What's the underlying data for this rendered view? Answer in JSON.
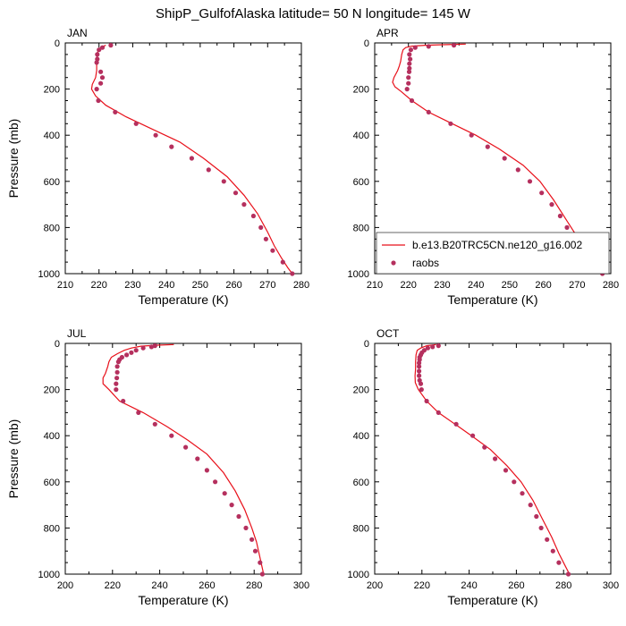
{
  "title": "ShipP_GulfofAlaska  latitude= 50 N longitude= 145 W",
  "legend": {
    "model_label": "b.e13.B20TRC5CN.ne120_g16.002",
    "obs_label": "raobs"
  },
  "colors": {
    "model": "#e8101a",
    "obs": "#b5305e"
  },
  "chart_data": [
    {
      "type": "line",
      "month": "JAN",
      "xlabel": "Temperature (K)",
      "ylabel": "Pressure (mb)",
      "xlim": [
        210,
        280
      ],
      "xticks": [
        210,
        220,
        230,
        240,
        250,
        260,
        270,
        280
      ],
      "ylim": [
        1000,
        0
      ],
      "yticks": [
        0,
        200,
        400,
        600,
        800,
        1000
      ],
      "grid": false,
      "model": [
        [
          222,
          10
        ],
        [
          220.5,
          20
        ],
        [
          219.8,
          30
        ],
        [
          219.4,
          50
        ],
        [
          219.3,
          80
        ],
        [
          219.3,
          120
        ],
        [
          219,
          150
        ],
        [
          218,
          180
        ],
        [
          217.8,
          200
        ],
        [
          219,
          230
        ],
        [
          222,
          270
        ],
        [
          228,
          320
        ],
        [
          236,
          375
        ],
        [
          244,
          430
        ],
        [
          251,
          500
        ],
        [
          258,
          580
        ],
        [
          263,
          660
        ],
        [
          267,
          740
        ],
        [
          270,
          820
        ],
        [
          272,
          880
        ],
        [
          274,
          930
        ],
        [
          276,
          975
        ],
        [
          277.3,
          1000
        ]
      ],
      "raobs": [
        [
          223.5,
          10
        ],
        [
          221,
          20
        ],
        [
          220,
          30
        ],
        [
          219.5,
          50
        ],
        [
          219.5,
          70
        ],
        [
          219.3,
          85
        ],
        [
          220.5,
          125
        ],
        [
          221,
          150
        ],
        [
          220.5,
          175
        ],
        [
          219.3,
          200
        ],
        [
          219.8,
          250
        ],
        [
          224.8,
          300
        ],
        [
          231,
          350
        ],
        [
          236.8,
          400
        ],
        [
          241.5,
          450
        ],
        [
          247.5,
          500
        ],
        [
          252.5,
          550
        ],
        [
          257,
          600
        ],
        [
          260.5,
          650
        ],
        [
          263,
          700
        ],
        [
          265.8,
          750
        ],
        [
          268,
          800
        ],
        [
          269.5,
          850
        ],
        [
          271.5,
          900
        ],
        [
          274.5,
          950
        ],
        [
          277.3,
          1000
        ]
      ]
    },
    {
      "type": "line",
      "month": "APR",
      "xlabel": "Temperature (K)",
      "ylabel": "",
      "xlim": [
        210,
        280
      ],
      "xticks": [
        210,
        220,
        230,
        240,
        250,
        260,
        270,
        280
      ],
      "ylim": [
        1000,
        0
      ],
      "yticks": [
        0,
        200,
        400,
        600,
        800,
        1000
      ],
      "grid": false,
      "legend_position": "lower-right",
      "model": [
        [
          237,
          5
        ],
        [
          229,
          8
        ],
        [
          225,
          10
        ],
        [
          221,
          14
        ],
        [
          219.2,
          20
        ],
        [
          218.4,
          30
        ],
        [
          218,
          50
        ],
        [
          217.7,
          80
        ],
        [
          217.3,
          100
        ],
        [
          216.8,
          120
        ],
        [
          215.7,
          150
        ],
        [
          215.3,
          170
        ],
        [
          216,
          190
        ],
        [
          217.8,
          210
        ],
        [
          221,
          250
        ],
        [
          226,
          300
        ],
        [
          233,
          350
        ],
        [
          240,
          400
        ],
        [
          247,
          460
        ],
        [
          254,
          530
        ],
        [
          259,
          600
        ],
        [
          263,
          680
        ],
        [
          266.5,
          760
        ],
        [
          270,
          840
        ],
        [
          273,
          910
        ],
        [
          276.5,
          980
        ],
        [
          277.5,
          1000
        ]
      ],
      "raobs": [
        [
          233.5,
          10
        ],
        [
          226,
          15
        ],
        [
          222,
          20
        ],
        [
          220.7,
          30
        ],
        [
          220.3,
          50
        ],
        [
          220.5,
          70
        ],
        [
          220.3,
          90
        ],
        [
          220.3,
          110
        ],
        [
          220.2,
          125
        ],
        [
          220,
          150
        ],
        [
          220,
          175
        ],
        [
          219.6,
          200
        ],
        [
          221,
          250
        ],
        [
          226,
          300
        ],
        [
          232.5,
          350
        ],
        [
          238.7,
          400
        ],
        [
          243.5,
          450
        ],
        [
          248.5,
          500
        ],
        [
          252.5,
          550
        ],
        [
          256,
          600
        ],
        [
          259.5,
          650
        ],
        [
          262.5,
          700
        ],
        [
          265,
          750
        ],
        [
          267,
          800
        ],
        [
          269.5,
          850
        ],
        [
          272,
          900
        ],
        [
          274.5,
          950
        ],
        [
          277.5,
          1000
        ]
      ]
    },
    {
      "type": "line",
      "month": "JUL",
      "xlabel": "Temperature (K)",
      "ylabel": "Pressure (mb)",
      "xlim": [
        200,
        300
      ],
      "xticks": [
        200,
        220,
        240,
        260,
        280,
        300
      ],
      "ylim": [
        1000,
        0
      ],
      "yticks": [
        0,
        200,
        400,
        600,
        800,
        1000
      ],
      "grid": false,
      "model": [
        [
          246,
          5
        ],
        [
          238,
          8
        ],
        [
          232,
          12
        ],
        [
          228,
          20
        ],
        [
          225,
          30
        ],
        [
          222,
          45
        ],
        [
          219.5,
          60
        ],
        [
          218.5,
          80
        ],
        [
          218,
          100
        ],
        [
          217,
          130
        ],
        [
          216,
          150
        ],
        [
          216,
          175
        ],
        [
          218.5,
          200
        ],
        [
          223,
          250
        ],
        [
          233,
          300
        ],
        [
          243,
          360
        ],
        [
          252,
          420
        ],
        [
          260,
          480
        ],
        [
          267,
          560
        ],
        [
          272,
          640
        ],
        [
          276,
          720
        ],
        [
          279,
          800
        ],
        [
          281,
          860
        ],
        [
          282.5,
          930
        ],
        [
          284,
          1000
        ]
      ],
      "raobs": [
        [
          238,
          10
        ],
        [
          236.5,
          15
        ],
        [
          233,
          20
        ],
        [
          230,
          30
        ],
        [
          228,
          40
        ],
        [
          226,
          50
        ],
        [
          224,
          60
        ],
        [
          223,
          70
        ],
        [
          222.5,
          80
        ],
        [
          222,
          100
        ],
        [
          222,
          125
        ],
        [
          221.8,
          150
        ],
        [
          221.5,
          175
        ],
        [
          221.5,
          200
        ],
        [
          224.5,
          250
        ],
        [
          231,
          300
        ],
        [
          238,
          350
        ],
        [
          245,
          400
        ],
        [
          251,
          450
        ],
        [
          256,
          500
        ],
        [
          260,
          550
        ],
        [
          263.5,
          600
        ],
        [
          267.5,
          650
        ],
        [
          270.5,
          700
        ],
        [
          273.5,
          750
        ],
        [
          276.5,
          800
        ],
        [
          279,
          850
        ],
        [
          280.5,
          900
        ],
        [
          282.5,
          950
        ],
        [
          283.5,
          1000
        ]
      ]
    },
    {
      "type": "line",
      "month": "OCT",
      "xlabel": "Temperature (K)",
      "ylabel": "",
      "xlim": [
        200,
        300
      ],
      "xticks": [
        200,
        220,
        240,
        260,
        280,
        300
      ],
      "ylim": [
        1000,
        0
      ],
      "yticks": [
        0,
        200,
        400,
        600,
        800,
        1000
      ],
      "grid": false,
      "model": [
        [
          226,
          5
        ],
        [
          222,
          10
        ],
        [
          219.5,
          20
        ],
        [
          218,
          30
        ],
        [
          217.5,
          50
        ],
        [
          217.3,
          80
        ],
        [
          217.3,
          110
        ],
        [
          217.1,
          140
        ],
        [
          217.2,
          170
        ],
        [
          218.5,
          200
        ],
        [
          222,
          250
        ],
        [
          227,
          300
        ],
        [
          234,
          350
        ],
        [
          241,
          400
        ],
        [
          249,
          460
        ],
        [
          256,
          530
        ],
        [
          262,
          600
        ],
        [
          267,
          680
        ],
        [
          271,
          760
        ],
        [
          275,
          840
        ],
        [
          278,
          910
        ],
        [
          281,
          970
        ],
        [
          282.5,
          1000
        ]
      ],
      "raobs": [
        [
          227,
          10
        ],
        [
          224.5,
          15
        ],
        [
          222.5,
          20
        ],
        [
          221,
          30
        ],
        [
          220,
          40
        ],
        [
          219.5,
          50
        ],
        [
          219,
          60
        ],
        [
          219,
          70
        ],
        [
          218.8,
          85
        ],
        [
          218.8,
          100
        ],
        [
          218.8,
          120
        ],
        [
          218.8,
          140
        ],
        [
          219,
          160
        ],
        [
          219.5,
          175
        ],
        [
          219.8,
          200
        ],
        [
          222,
          250
        ],
        [
          227,
          300
        ],
        [
          234.5,
          350
        ],
        [
          241.5,
          400
        ],
        [
          246.5,
          450
        ],
        [
          251,
          500
        ],
        [
          255.5,
          550
        ],
        [
          259,
          600
        ],
        [
          262.5,
          650
        ],
        [
          266,
          700
        ],
        [
          268.5,
          750
        ],
        [
          270.5,
          800
        ],
        [
          273,
          850
        ],
        [
          275.5,
          900
        ],
        [
          278,
          950
        ],
        [
          282,
          1000
        ]
      ]
    }
  ]
}
